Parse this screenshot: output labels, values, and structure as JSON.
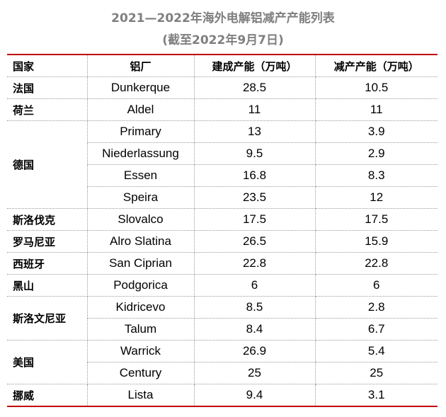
{
  "title": "2021—2022年海外电解铝减产产能列表",
  "subtitle": "(截至2022年9月7日)",
  "headers": [
    "国家",
    "铝厂",
    "建成产能（万吨）",
    "减产产能（万吨）"
  ],
  "groups": [
    {
      "country": "法国",
      "plants": [
        {
          "name": "Dunkerque",
          "built": "28.5",
          "reduced": "10.5"
        }
      ]
    },
    {
      "country": "荷兰",
      "plants": [
        {
          "name": "Aldel",
          "built": "11",
          "reduced": "11"
        }
      ]
    },
    {
      "country": "德国",
      "plants": [
        {
          "name": "Primary",
          "built": "13",
          "reduced": "3.9"
        },
        {
          "name": "Niederlassung",
          "built": "9.5",
          "reduced": "2.9"
        },
        {
          "name": "Essen",
          "built": "16.8",
          "reduced": "8.3"
        },
        {
          "name": "Speira",
          "built": "23.5",
          "reduced": "12"
        }
      ]
    },
    {
      "country": "斯洛伐克",
      "plants": [
        {
          "name": "Slovalco",
          "built": "17.5",
          "reduced": "17.5"
        }
      ]
    },
    {
      "country": "罗马尼亚",
      "plants": [
        {
          "name": "Alro Slatina",
          "built": "26.5",
          "reduced": "15.9"
        }
      ]
    },
    {
      "country": "西班牙",
      "plants": [
        {
          "name": "San Ciprian",
          "built": "22.8",
          "reduced": "22.8"
        }
      ]
    },
    {
      "country": "黑山",
      "plants": [
        {
          "name": "Podgorica",
          "built": "6",
          "reduced": "6"
        }
      ]
    },
    {
      "country": "斯洛文尼亚",
      "plants": [
        {
          "name": "Kidricevo",
          "built": "8.5",
          "reduced": "2.8"
        },
        {
          "name": "Talum",
          "built": "8.4",
          "reduced": "6.7"
        }
      ]
    },
    {
      "country": "美国",
      "plants": [
        {
          "name": "Warrick",
          "built": "26.9",
          "reduced": "5.4"
        },
        {
          "name": "Century",
          "built": "25",
          "reduced": "25"
        }
      ]
    },
    {
      "country": "挪威",
      "plants": [
        {
          "name": "Lista",
          "built": "9.4",
          "reduced": "3.1"
        }
      ]
    }
  ],
  "colors": {
    "title": "#7f7f7f",
    "rule": "#c00000",
    "grid": "#9a9a9a"
  }
}
